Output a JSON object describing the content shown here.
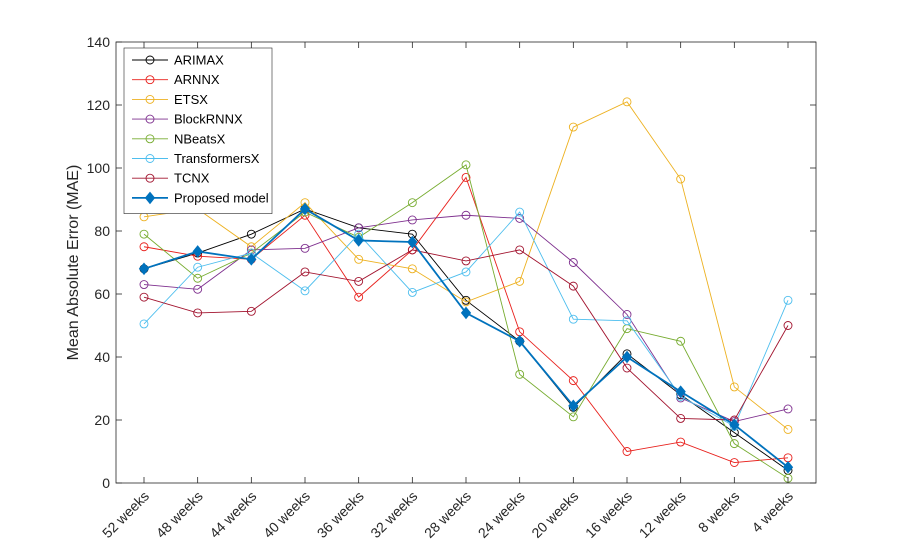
{
  "chart_data": {
    "type": "line",
    "title": "",
    "xlabel": "",
    "ylabel": "Mean Absolute Error (MAE)",
    "ylim": [
      0,
      140
    ],
    "yticks": [
      0,
      20,
      40,
      60,
      80,
      100,
      120,
      140
    ],
    "categories": [
      "52 weeks",
      "48 weeks",
      "44 weeks",
      "40 weeks",
      "36 weeks",
      "32 weeks",
      "28 weeks",
      "24 weeks",
      "20 weeks",
      "16 weeks",
      "12 weeks",
      "8 weeks",
      "4 weeks"
    ],
    "legend_position": "top-left",
    "series": [
      {
        "name": "ARIMAX",
        "color": "#000000",
        "marker": "circle",
        "values": [
          68,
          73,
          79,
          87,
          81,
          79,
          58,
          45,
          24,
          41,
          28,
          16,
          4
        ]
      },
      {
        "name": "ARNNX",
        "color": "#e8201c",
        "marker": "circle",
        "values": [
          75,
          72,
          71,
          85,
          59,
          74,
          97,
          48,
          32.5,
          10,
          13,
          6.5,
          8
        ]
      },
      {
        "name": "ETSX",
        "color": "#edb120",
        "marker": "circle",
        "values": [
          84.5,
          87,
          75,
          89,
          71,
          68,
          57.5,
          64,
          113,
          121,
          96.5,
          30.5,
          17
        ]
      },
      {
        "name": "BlockRNNX",
        "color": "#7e2f8e",
        "marker": "circle",
        "values": [
          63,
          61.5,
          74,
          74.5,
          81,
          83.5,
          85,
          84,
          70,
          53.5,
          27,
          19.5,
          23.5
        ]
      },
      {
        "name": "NBeatsX",
        "color": "#77ac30",
        "marker": "circle",
        "values": [
          79,
          65,
          73,
          86,
          78,
          89,
          101,
          34.5,
          21,
          49,
          45,
          12.5,
          1.5
        ]
      },
      {
        "name": "TransformersX",
        "color": "#4dbeee",
        "marker": "circle",
        "values": [
          50.5,
          68.5,
          73,
          61,
          79,
          60.5,
          67,
          86,
          52,
          51.5,
          27.5,
          18,
          58
        ]
      },
      {
        "name": "TCNX",
        "color": "#a2142f",
        "marker": "circle",
        "values": [
          59,
          54,
          54.5,
          67,
          64,
          74,
          70.5,
          74,
          62.5,
          36.5,
          20.5,
          20,
          50
        ]
      },
      {
        "name": "Proposed model",
        "color": "#0072bd",
        "marker": "diamond",
        "values": [
          68,
          73.5,
          71,
          87,
          77,
          76.5,
          54,
          45,
          24.5,
          40,
          29,
          18.5,
          5
        ]
      }
    ]
  }
}
